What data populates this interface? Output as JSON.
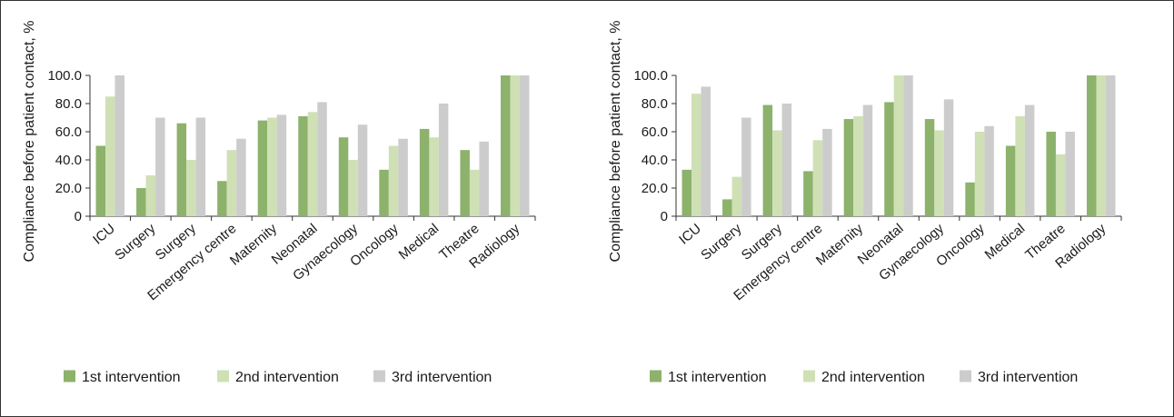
{
  "chart_data": [
    {
      "type": "bar",
      "ylabel": "Compliance before patient contact, %",
      "xlabel": "",
      "ylim": [
        0,
        100
      ],
      "yticks": [
        "0",
        "20.0",
        "40.0",
        "60.0",
        "80.0",
        "100.0"
      ],
      "yticks_values": [
        0,
        20,
        40,
        60,
        80,
        100
      ],
      "categories": [
        "ICU",
        "Surgery",
        "Surgery",
        "Emergency centre",
        "Maternity",
        "Neonatal",
        "Gynaecology",
        "Oncology",
        "Medical",
        "Theatre",
        "Radiology"
      ],
      "series": [
        {
          "name": "1st intervention",
          "values": [
            50,
            20,
            66,
            25,
            68,
            71,
            56,
            33,
            62,
            47,
            100
          ]
        },
        {
          "name": "2nd intervention",
          "values": [
            85,
            29,
            40,
            47,
            70,
            74,
            40,
            50,
            56,
            33,
            100
          ]
        },
        {
          "name": "3rd intervention",
          "values": [
            100,
            70,
            70,
            55,
            72,
            81,
            65,
            55,
            80,
            53,
            100
          ]
        }
      ],
      "legend_position": "bottom",
      "grid": false
    },
    {
      "type": "bar",
      "ylabel": "Compliance before patient contact, %",
      "xlabel": "",
      "ylim": [
        0,
        100
      ],
      "yticks": [
        "0",
        "20.0",
        "40.0",
        "60.0",
        "80.0",
        "100.0"
      ],
      "yticks_values": [
        0,
        20,
        40,
        60,
        80,
        100
      ],
      "categories": [
        "ICU",
        "Surgery",
        "Surgery",
        "Emergency centre",
        "Maternity",
        "Neonatal",
        "Gynaecology",
        "Oncology",
        "Medical",
        "Theatre",
        "Radiology"
      ],
      "series": [
        {
          "name": "1st intervention",
          "values": [
            33,
            12,
            79,
            32,
            69,
            81,
            69,
            24,
            50,
            60,
            100
          ]
        },
        {
          "name": "2nd intervention",
          "values": [
            87,
            28,
            61,
            54,
            71,
            100,
            61,
            60,
            71,
            44,
            100
          ]
        },
        {
          "name": "3rd intervention",
          "values": [
            92,
            70,
            80,
            62,
            79,
            100,
            83,
            64,
            79,
            60,
            100
          ]
        }
      ],
      "legend_position": "bottom",
      "grid": false
    }
  ],
  "colors": {
    "series": [
      "#8db26b",
      "#cfe0b5",
      "#cccccc"
    ],
    "axis": "#333333",
    "text": "#1a1a1a"
  }
}
